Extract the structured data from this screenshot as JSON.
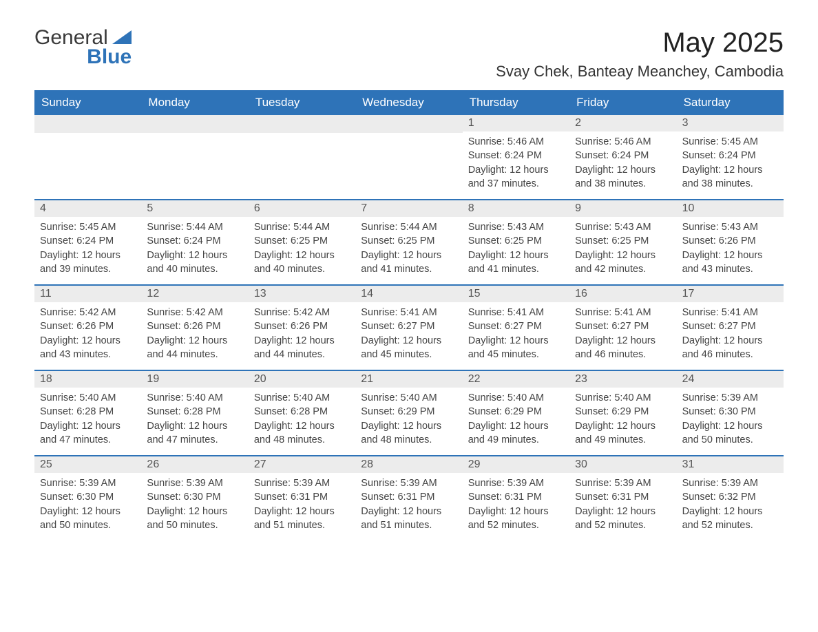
{
  "logo": {
    "text1": "General",
    "text2": "Blue"
  },
  "header": {
    "title": "May 2025",
    "location": "Svay Chek, Banteay Meanchey, Cambodia"
  },
  "colors": {
    "header_bg": "#2e73b8",
    "header_text": "#ffffff",
    "daynum_bg": "#ececec",
    "daynum_text": "#555555",
    "body_text": "#444444",
    "title_text": "#222222",
    "row_divider": "#2e73b8",
    "page_bg": "#ffffff",
    "logo_gray": "#3a3a3a",
    "logo_blue": "#2e73b8"
  },
  "fonts": {
    "title_size_pt": 30,
    "location_size_pt": 16,
    "weekday_size_pt": 13,
    "daynum_size_pt": 12,
    "body_size_pt": 11,
    "family": "Arial"
  },
  "weekdays": [
    "Sunday",
    "Monday",
    "Tuesday",
    "Wednesday",
    "Thursday",
    "Friday",
    "Saturday"
  ],
  "weeks": [
    [
      {
        "empty": true
      },
      {
        "empty": true
      },
      {
        "empty": true
      },
      {
        "empty": true
      },
      {
        "num": "1",
        "sunrise": "Sunrise: 5:46 AM",
        "sunset": "Sunset: 6:24 PM",
        "daylight": "Daylight: 12 hours and 37 minutes."
      },
      {
        "num": "2",
        "sunrise": "Sunrise: 5:46 AM",
        "sunset": "Sunset: 6:24 PM",
        "daylight": "Daylight: 12 hours and 38 minutes."
      },
      {
        "num": "3",
        "sunrise": "Sunrise: 5:45 AM",
        "sunset": "Sunset: 6:24 PM",
        "daylight": "Daylight: 12 hours and 38 minutes."
      }
    ],
    [
      {
        "num": "4",
        "sunrise": "Sunrise: 5:45 AM",
        "sunset": "Sunset: 6:24 PM",
        "daylight": "Daylight: 12 hours and 39 minutes."
      },
      {
        "num": "5",
        "sunrise": "Sunrise: 5:44 AM",
        "sunset": "Sunset: 6:24 PM",
        "daylight": "Daylight: 12 hours and 40 minutes."
      },
      {
        "num": "6",
        "sunrise": "Sunrise: 5:44 AM",
        "sunset": "Sunset: 6:25 PM",
        "daylight": "Daylight: 12 hours and 40 minutes."
      },
      {
        "num": "7",
        "sunrise": "Sunrise: 5:44 AM",
        "sunset": "Sunset: 6:25 PM",
        "daylight": "Daylight: 12 hours and 41 minutes."
      },
      {
        "num": "8",
        "sunrise": "Sunrise: 5:43 AM",
        "sunset": "Sunset: 6:25 PM",
        "daylight": "Daylight: 12 hours and 41 minutes."
      },
      {
        "num": "9",
        "sunrise": "Sunrise: 5:43 AM",
        "sunset": "Sunset: 6:25 PM",
        "daylight": "Daylight: 12 hours and 42 minutes."
      },
      {
        "num": "10",
        "sunrise": "Sunrise: 5:43 AM",
        "sunset": "Sunset: 6:26 PM",
        "daylight": "Daylight: 12 hours and 43 minutes."
      }
    ],
    [
      {
        "num": "11",
        "sunrise": "Sunrise: 5:42 AM",
        "sunset": "Sunset: 6:26 PM",
        "daylight": "Daylight: 12 hours and 43 minutes."
      },
      {
        "num": "12",
        "sunrise": "Sunrise: 5:42 AM",
        "sunset": "Sunset: 6:26 PM",
        "daylight": "Daylight: 12 hours and 44 minutes."
      },
      {
        "num": "13",
        "sunrise": "Sunrise: 5:42 AM",
        "sunset": "Sunset: 6:26 PM",
        "daylight": "Daylight: 12 hours and 44 minutes."
      },
      {
        "num": "14",
        "sunrise": "Sunrise: 5:41 AM",
        "sunset": "Sunset: 6:27 PM",
        "daylight": "Daylight: 12 hours and 45 minutes."
      },
      {
        "num": "15",
        "sunrise": "Sunrise: 5:41 AM",
        "sunset": "Sunset: 6:27 PM",
        "daylight": "Daylight: 12 hours and 45 minutes."
      },
      {
        "num": "16",
        "sunrise": "Sunrise: 5:41 AM",
        "sunset": "Sunset: 6:27 PM",
        "daylight": "Daylight: 12 hours and 46 minutes."
      },
      {
        "num": "17",
        "sunrise": "Sunrise: 5:41 AM",
        "sunset": "Sunset: 6:27 PM",
        "daylight": "Daylight: 12 hours and 46 minutes."
      }
    ],
    [
      {
        "num": "18",
        "sunrise": "Sunrise: 5:40 AM",
        "sunset": "Sunset: 6:28 PM",
        "daylight": "Daylight: 12 hours and 47 minutes."
      },
      {
        "num": "19",
        "sunrise": "Sunrise: 5:40 AM",
        "sunset": "Sunset: 6:28 PM",
        "daylight": "Daylight: 12 hours and 47 minutes."
      },
      {
        "num": "20",
        "sunrise": "Sunrise: 5:40 AM",
        "sunset": "Sunset: 6:28 PM",
        "daylight": "Daylight: 12 hours and 48 minutes."
      },
      {
        "num": "21",
        "sunrise": "Sunrise: 5:40 AM",
        "sunset": "Sunset: 6:29 PM",
        "daylight": "Daylight: 12 hours and 48 minutes."
      },
      {
        "num": "22",
        "sunrise": "Sunrise: 5:40 AM",
        "sunset": "Sunset: 6:29 PM",
        "daylight": "Daylight: 12 hours and 49 minutes."
      },
      {
        "num": "23",
        "sunrise": "Sunrise: 5:40 AM",
        "sunset": "Sunset: 6:29 PM",
        "daylight": "Daylight: 12 hours and 49 minutes."
      },
      {
        "num": "24",
        "sunrise": "Sunrise: 5:39 AM",
        "sunset": "Sunset: 6:30 PM",
        "daylight": "Daylight: 12 hours and 50 minutes."
      }
    ],
    [
      {
        "num": "25",
        "sunrise": "Sunrise: 5:39 AM",
        "sunset": "Sunset: 6:30 PM",
        "daylight": "Daylight: 12 hours and 50 minutes."
      },
      {
        "num": "26",
        "sunrise": "Sunrise: 5:39 AM",
        "sunset": "Sunset: 6:30 PM",
        "daylight": "Daylight: 12 hours and 50 minutes."
      },
      {
        "num": "27",
        "sunrise": "Sunrise: 5:39 AM",
        "sunset": "Sunset: 6:31 PM",
        "daylight": "Daylight: 12 hours and 51 minutes."
      },
      {
        "num": "28",
        "sunrise": "Sunrise: 5:39 AM",
        "sunset": "Sunset: 6:31 PM",
        "daylight": "Daylight: 12 hours and 51 minutes."
      },
      {
        "num": "29",
        "sunrise": "Sunrise: 5:39 AM",
        "sunset": "Sunset: 6:31 PM",
        "daylight": "Daylight: 12 hours and 52 minutes."
      },
      {
        "num": "30",
        "sunrise": "Sunrise: 5:39 AM",
        "sunset": "Sunset: 6:31 PM",
        "daylight": "Daylight: 12 hours and 52 minutes."
      },
      {
        "num": "31",
        "sunrise": "Sunrise: 5:39 AM",
        "sunset": "Sunset: 6:32 PM",
        "daylight": "Daylight: 12 hours and 52 minutes."
      }
    ]
  ]
}
